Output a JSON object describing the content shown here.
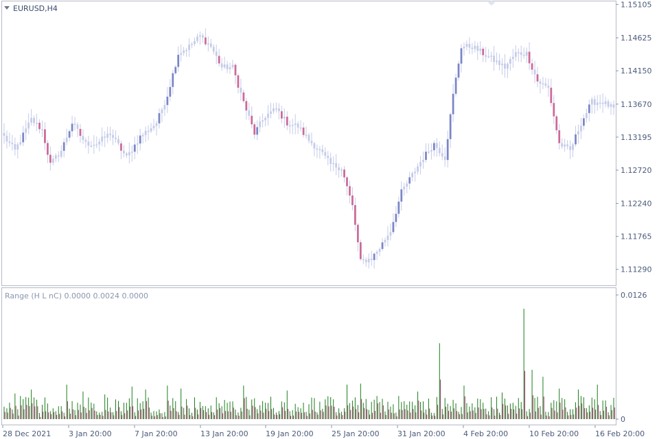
{
  "chart_data": [
    {
      "type": "candlestick",
      "title": "EURUSD,H4",
      "symbol": "EURUSD",
      "timeframe": "H4",
      "ylim": [
        1.1106,
        1.1515
      ],
      "price_ticks": [
        "1.15105",
        "1.14625",
        "1.14150",
        "1.13670",
        "1.13195",
        "1.12720",
        "1.12240",
        "1.11765",
        "1.11290"
      ],
      "x_tick_labels": [
        "28 Dec 2021",
        "3 Jan 20:00",
        "7 Jan 20:00",
        "13 Jan 20:00",
        "19 Jan 20:00",
        "25 Jan 20:00",
        "31 Jan 20:00",
        "4 Feb 20:00",
        "10 Feb 20:00",
        "16 Feb 20:00"
      ],
      "colors": {
        "bull": "#7b86c6",
        "bear": "#cc6a98",
        "doji": "#c5cbe8"
      },
      "key_closes": [
        [
          0,
          1.132
        ],
        [
          4,
          1.13
        ],
        [
          10,
          1.1345
        ],
        [
          14,
          1.133
        ],
        [
          17,
          1.128
        ],
        [
          21,
          1.13
        ],
        [
          25,
          1.134
        ],
        [
          30,
          1.131
        ],
        [
          34,
          1.131
        ],
        [
          39,
          1.1325
        ],
        [
          45,
          1.129
        ],
        [
          50,
          1.132
        ],
        [
          56,
          1.134
        ],
        [
          60,
          1.138
        ],
        [
          64,
          1.144
        ],
        [
          68,
          1.145
        ],
        [
          72,
          1.1465
        ],
        [
          76,
          1.145
        ],
        [
          80,
          1.142
        ],
        [
          84,
          1.142
        ],
        [
          88,
          1.137
        ],
        [
          92,
          1.1325
        ],
        [
          96,
          1.135
        ],
        [
          100,
          1.136
        ],
        [
          104,
          1.134
        ],
        [
          108,
          1.1335
        ],
        [
          112,
          1.1315
        ],
        [
          116,
          1.13
        ],
        [
          120,
          1.128
        ],
        [
          124,
          1.1275
        ],
        [
          128,
          1.122
        ],
        [
          131,
          1.114
        ],
        [
          135,
          1.1145
        ],
        [
          138,
          1.116
        ],
        [
          142,
          1.1185
        ],
        [
          146,
          1.124
        ],
        [
          150,
          1.1265
        ],
        [
          154,
          1.129
        ],
        [
          158,
          1.131
        ],
        [
          162,
          1.129
        ],
        [
          165,
          1.138
        ],
        [
          168,
          1.145
        ],
        [
          172,
          1.145
        ],
        [
          176,
          1.144
        ],
        [
          180,
          1.143
        ],
        [
          184,
          1.142
        ],
        [
          188,
          1.144
        ],
        [
          192,
          1.144
        ],
        [
          196,
          1.14
        ],
        [
          200,
          1.139
        ],
        [
          204,
          1.131
        ],
        [
          208,
          1.13
        ],
        [
          212,
          1.134
        ],
        [
          216,
          1.137
        ],
        [
          220,
          1.137
        ],
        [
          224,
          1.136
        ]
      ],
      "total_bars": 225
    },
    {
      "type": "bar",
      "title": "Range (H L nC) 0.0000 0.0024 0.0000",
      "indicator_label": "Range (H L nC) 0.0000 0.0024 0.0000",
      "ylim": [
        0,
        0.0126
      ],
      "y_tick_labels": [
        "0.0126",
        "0"
      ],
      "colors": {
        "range": "#1b7d1b",
        "secondary": "#9a3a66"
      },
      "spikes": [
        [
          4,
          0.0026
        ],
        [
          10,
          0.003
        ],
        [
          15,
          0.0022
        ],
        [
          23,
          0.0035
        ],
        [
          29,
          0.0028
        ],
        [
          37,
          0.0025
        ],
        [
          47,
          0.0033
        ],
        [
          52,
          0.003
        ],
        [
          60,
          0.0034
        ],
        [
          65,
          0.0031
        ],
        [
          88,
          0.0034
        ],
        [
          104,
          0.0029
        ],
        [
          126,
          0.0035
        ],
        [
          131,
          0.0036
        ],
        [
          152,
          0.0028
        ],
        [
          160,
          0.0077
        ],
        [
          169,
          0.0034
        ],
        [
          183,
          0.0027
        ],
        [
          191,
          0.0112
        ],
        [
          194,
          0.005
        ],
        [
          198,
          0.0043
        ],
        [
          204,
          0.0031
        ],
        [
          211,
          0.003
        ],
        [
          218,
          0.0035
        ]
      ]
    }
  ]
}
